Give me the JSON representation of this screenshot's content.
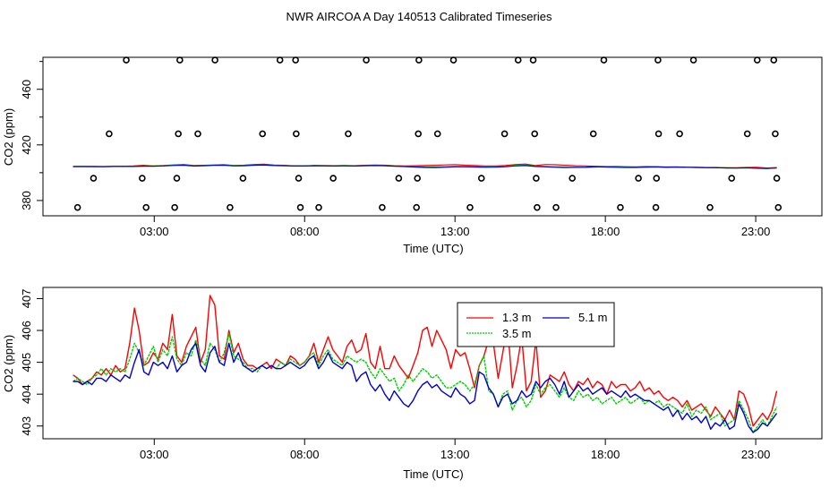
{
  "figure_title": "NWR AIRCOA A  Day 140513  Calibrated Timeseries",
  "chart_data": [
    {
      "type": "scatter",
      "title": "",
      "xlabel": "Time (UTC)",
      "ylabel": "CO2 (ppm)",
      "xlim": [
        -0.7,
        25.2
      ],
      "ylim": [
        369,
        483
      ],
      "x_ticks": [
        3,
        8,
        13,
        18,
        23
      ],
      "x_tick_labels": [
        "03:00",
        "08:00",
        "13:00",
        "18:00",
        "23:00"
      ],
      "y_ticks": [
        380,
        420,
        460
      ],
      "y_tick_labels": [
        "380",
        "420",
        "460"
      ],
      "point_series": [
        {
          "name": "flagged-high",
          "y": 481,
          "x": [
            2.07,
            3.85,
            5.02,
            7.18,
            7.7,
            10.05,
            11.8,
            12.95,
            15.1,
            15.6,
            17.95,
            19.75,
            20.93,
            23.05,
            23.6
          ]
        },
        {
          "name": "flagged-mid",
          "y": 428,
          "x": [
            1.5,
            3.8,
            4.45,
            6.6,
            7.72,
            9.45,
            11.78,
            12.42,
            14.65,
            15.65,
            17.6,
            19.77,
            20.47,
            22.72,
            23.65
          ]
        },
        {
          "name": "flagged-lowmid",
          "y": 396,
          "x": [
            0.98,
            2.6,
            3.75,
            5.95,
            7.8,
            8.95,
            11.13,
            11.75,
            13.88,
            15.7,
            16.9,
            19.1,
            19.7,
            22.2,
            23.7
          ]
        },
        {
          "name": "flagged-low",
          "y": 375,
          "x": [
            0.45,
            2.73,
            3.68,
            5.52,
            7.86,
            8.47,
            10.58,
            11.72,
            13.5,
            15.73,
            16.36,
            18.5,
            19.68,
            21.48,
            23.75
          ]
        }
      ],
      "line_series": [
        {
          "name": "1.3 m",
          "color": "#ff0000",
          "values": [
            404.4,
            404.5,
            404.6,
            404.4,
            404.5,
            404.6,
            404.8,
            405.3,
            404.9,
            405.1,
            405.6,
            405.9,
            405.1,
            405.3,
            405.5,
            405.8,
            405.2,
            405.4,
            405.9,
            406.1,
            405.5,
            405.3,
            404.9,
            404.8,
            405.2,
            405.1,
            405.0,
            405.2,
            405.0,
            405.3,
            405.5,
            405.4,
            405.0,
            404.9,
            405.0,
            405.1,
            405.3,
            405.6,
            405.8,
            405.4,
            405.2,
            404.9,
            404.8,
            405.2,
            405.9,
            406.2,
            405.1,
            405.9,
            405.7,
            405.3,
            405.0,
            404.9,
            404.6,
            404.4,
            404.5,
            404.3,
            404.2,
            404.4,
            404.3,
            404.1,
            404.2,
            404.0,
            403.9,
            403.7,
            403.8,
            403.6,
            403.5,
            403.8,
            403.9,
            403.4,
            403.7
          ]
        },
        {
          "name": "3.5 m",
          "color": "#00cc00",
          "values": [
            404.4,
            404.4,
            404.5,
            404.4,
            404.5,
            404.6,
            404.7,
            404.9,
            404.8,
            405.0,
            405.4,
            405.6,
            405.0,
            405.2,
            405.5,
            405.6,
            405.1,
            405.1,
            405.6,
            405.6,
            405.2,
            405.2,
            404.9,
            404.8,
            405.1,
            405.0,
            404.9,
            405.1,
            404.9,
            405.1,
            405.2,
            405.1,
            404.9,
            404.6,
            404.4,
            404.2,
            404.1,
            404.3,
            404.6,
            404.5,
            404.4,
            404.2,
            404.3,
            404.5,
            405.1,
            405.4,
            404.8,
            404.5,
            404.2,
            403.9,
            403.8,
            403.8,
            404.1,
            404.3,
            404.1,
            404.0,
            403.9,
            404.0,
            404.1,
            403.8,
            403.9,
            403.9,
            403.8,
            403.6,
            403.6,
            403.5,
            403.4,
            403.5,
            403.3,
            403.0,
            403.5
          ]
        },
        {
          "name": "5.1 m",
          "color": "#0000cc",
          "values": [
            404.4,
            404.4,
            404.3,
            404.3,
            404.5,
            404.5,
            404.5,
            404.7,
            404.7,
            404.9,
            405.2,
            405.4,
            404.8,
            405.0,
            405.3,
            405.4,
            404.9,
            405.0,
            405.4,
            405.5,
            405.1,
            405.0,
            404.8,
            404.8,
            405.0,
            404.9,
            404.8,
            404.9,
            404.8,
            405.0,
            405.1,
            405.0,
            404.7,
            404.4,
            404.1,
            403.8,
            403.7,
            403.9,
            404.2,
            404.2,
            404.1,
            403.9,
            404.0,
            404.3,
            404.9,
            405.1,
            404.5,
            404.2,
            403.9,
            403.7,
            403.9,
            404.0,
            404.3,
            404.1,
            403.9,
            403.8,
            403.8,
            404.0,
            404.2,
            404.0,
            404.0,
            403.9,
            403.8,
            403.7,
            403.6,
            403.4,
            403.3,
            403.5,
            403.2,
            403.0,
            403.3
          ]
        }
      ],
      "line_x_start": 0.3,
      "line_x_end": 23.7
    },
    {
      "type": "line",
      "title": "",
      "xlabel": "Time (UTC)",
      "ylabel": "CO2 (ppm)",
      "xlim": [
        -0.7,
        25.2
      ],
      "ylim": [
        402.6,
        407.35
      ],
      "x_ticks": [
        3,
        8,
        13,
        18,
        23
      ],
      "x_tick_labels": [
        "03:00",
        "08:00",
        "13:00",
        "18:00",
        "23:00"
      ],
      "y_ticks": [
        403,
        404,
        405,
        406,
        407
      ],
      "y_tick_labels": [
        "403",
        "404",
        "405",
        "406",
        "407"
      ],
      "legend": {
        "position": "top-center",
        "entries": [
          "1.3 m",
          "3.5 m",
          "5.1 m"
        ]
      },
      "x_start": 0.3,
      "x_end": 23.7,
      "series": [
        {
          "name": "1.3 m",
          "color": "#ff0000",
          "values": [
            404.6,
            404.5,
            404.3,
            404.4,
            404.5,
            404.7,
            404.6,
            404.8,
            404.6,
            404.9,
            404.7,
            404.8,
            405.6,
            406.7,
            406.0,
            404.9,
            405.0,
            405.3,
            405.1,
            405.6,
            405.4,
            406.5,
            405.2,
            405.0,
            405.5,
            405.8,
            406.1,
            405.0,
            405.4,
            407.1,
            406.8,
            405.2,
            405.1,
            406.0,
            405.3,
            405.6,
            405.1,
            404.9,
            404.9,
            404.8,
            404.9,
            405.0,
            404.8,
            405.1,
            405.0,
            404.9,
            405.2,
            405.1,
            404.9,
            405.0,
            405.2,
            405.6,
            405.0,
            405.4,
            405.8,
            405.4,
            405.2,
            405.0,
            405.5,
            405.7,
            405.3,
            405.4,
            405.9,
            405.0,
            404.8,
            405.5,
            404.8,
            404.8,
            405.2,
            404.9,
            404.7,
            404.5,
            404.9,
            405.3,
            406.0,
            406.1,
            405.5,
            406.0,
            405.7,
            405.4,
            404.8,
            405.4,
            405.2,
            405.3,
            404.8,
            404.2,
            404.9,
            405.2,
            405.7,
            405.6,
            404.5,
            405.3,
            406.2,
            404.2,
            404.9,
            405.8,
            404.1,
            404.4,
            405.7,
            403.9,
            404.1,
            404.6,
            404.5,
            404.4,
            404.7,
            404.3,
            404.1,
            404.4,
            404.3,
            404.5,
            404.2,
            404.4,
            404.3,
            404.0,
            404.4,
            404.2,
            404.3,
            404.3,
            404.1,
            404.2,
            404.4,
            404.1,
            404.2,
            404.0,
            404.1,
            403.9,
            403.8,
            403.9,
            403.8,
            403.6,
            403.8,
            403.5,
            403.6,
            403.7,
            403.5,
            403.3,
            403.6,
            403.4,
            403.2,
            403.5,
            403.2,
            404.1,
            404.0,
            403.6,
            403.0,
            403.2,
            403.4,
            403.2,
            403.5,
            404.1
          ]
        },
        {
          "name": "3.5 m",
          "color": "#00cc00",
          "values": [
            404.4,
            404.5,
            404.4,
            404.3,
            404.5,
            404.6,
            404.8,
            404.6,
            404.8,
            404.7,
            404.8,
            404.7,
            405.1,
            405.6,
            405.3,
            404.9,
            405.2,
            405.5,
            405.0,
            405.4,
            405.2,
            405.8,
            405.1,
            404.9,
            405.3,
            405.2,
            405.7,
            405.1,
            404.9,
            405.6,
            405.4,
            405.0,
            405.3,
            405.9,
            405.2,
            405.1,
            405.0,
            404.8,
            404.8,
            404.7,
            404.9,
            404.8,
            404.9,
            404.8,
            405.0,
            404.9,
            405.1,
            405.0,
            404.9,
            405.0,
            405.2,
            405.3,
            404.9,
            405.2,
            405.4,
            405.1,
            405.0,
            404.9,
            405.2,
            405.1,
            405.0,
            405.1,
            405.0,
            404.7,
            404.5,
            404.8,
            404.6,
            404.4,
            404.5,
            404.1,
            404.3,
            404.6,
            404.4,
            404.6,
            404.8,
            404.7,
            404.5,
            404.6,
            404.4,
            404.2,
            404.2,
            404.3,
            404.4,
            404.3,
            404.1,
            404.3,
            404.9,
            405.2,
            404.1,
            404.0,
            403.6,
            404.0,
            404.1,
            403.5,
            403.8,
            403.9,
            403.6,
            403.8,
            404.3,
            404.0,
            404.2,
            404.3,
            404.1,
            403.9,
            404.2,
            403.9,
            403.8,
            404.1,
            403.9,
            404.0,
            403.8,
            403.9,
            403.7,
            403.8,
            403.9,
            403.7,
            403.8,
            403.9,
            403.7,
            403.8,
            403.9,
            403.7,
            403.8,
            403.7,
            403.8,
            403.6,
            403.7,
            403.6,
            403.5,
            403.4,
            403.7,
            403.3,
            403.5,
            403.4,
            403.6,
            403.2,
            403.3,
            403.4,
            403.0,
            403.1,
            403.2,
            403.8,
            403.5,
            403.2,
            402.8,
            403.0,
            403.2,
            403.0,
            403.3,
            403.6
          ]
        },
        {
          "name": "5.1 m",
          "color": "#0000cc",
          "values": [
            404.4,
            404.4,
            404.3,
            404.4,
            404.3,
            404.5,
            404.5,
            404.4,
            404.6,
            404.5,
            404.4,
            404.6,
            404.5,
            405.0,
            405.4,
            404.7,
            404.6,
            405.0,
            404.9,
            405.0,
            404.8,
            405.2,
            404.7,
            404.9,
            405.0,
            405.4,
            405.6,
            404.9,
            404.7,
            405.3,
            405.5,
            405.0,
            404.9,
            405.6,
            405.0,
            405.3,
            404.9,
            404.8,
            404.7,
            404.8,
            404.9,
            404.8,
            404.9,
            404.8,
            404.8,
            404.9,
            405.0,
            404.9,
            404.8,
            404.9,
            405.1,
            405.2,
            404.8,
            405.0,
            405.3,
            405.0,
            404.9,
            404.8,
            405.0,
            404.9,
            404.4,
            404.6,
            404.7,
            404.3,
            404.1,
            404.3,
            404.0,
            403.8,
            404.1,
            403.9,
            403.7,
            403.6,
            403.8,
            404.1,
            404.3,
            404.4,
            404.2,
            404.3,
            404.1,
            404.0,
            403.9,
            404.2,
            404.0,
            403.9,
            403.7,
            403.8,
            404.7,
            404.6,
            404.2,
            404.0,
            403.6,
            403.9,
            404.0,
            403.7,
            403.8,
            404.1,
            403.9,
            404.0,
            404.4,
            404.2,
            404.4,
            404.5,
            404.3,
            404.0,
            404.4,
            403.9,
            404.1,
            404.3,
            404.1,
            404.2,
            404.0,
            404.1,
            404.2,
            404.0,
            404.1,
            404.0,
            403.9,
            404.1,
            403.9,
            404.0,
            403.9,
            403.8,
            403.8,
            403.7,
            403.6,
            403.5,
            403.6,
            403.3,
            403.5,
            403.2,
            403.4,
            403.2,
            403.3,
            403.1,
            403.3,
            402.9,
            403.1,
            403.0,
            403.2,
            402.9,
            403.0,
            403.7,
            403.4,
            403.0,
            402.8,
            402.9,
            403.1,
            403.0,
            403.2,
            403.4
          ]
        }
      ]
    }
  ]
}
